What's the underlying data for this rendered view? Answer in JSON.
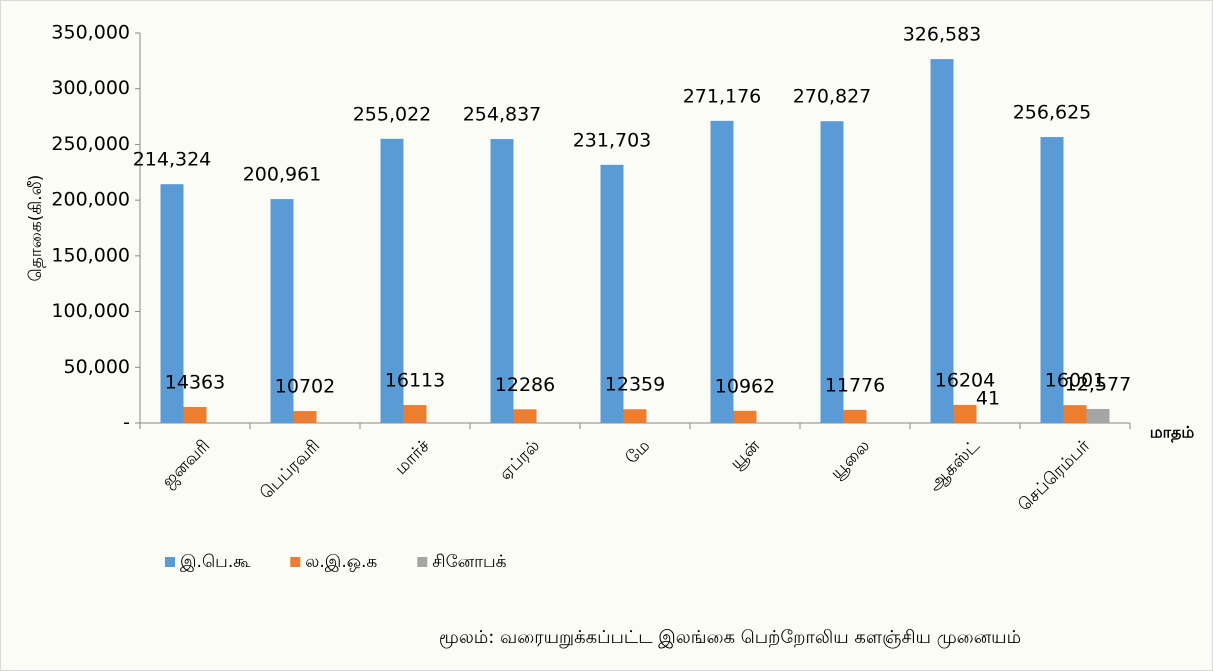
{
  "chart_data": {
    "type": "bar",
    "y_label": "தொகை(கி.லீ)",
    "x_label": "மாதம்",
    "source": "மூலம்: வரையறுக்கப்பட்ட இலங்கை பெற்றோலிய களஞ்சிய முனையம்",
    "categories": [
      "ஜனவரி",
      "பெப்ரவரி",
      "மார்ச்",
      "ஏப்ரல்",
      "மே",
      "யூன்",
      "யூலை",
      "ஆகஸ்ட்",
      "செப்ரெம்பர்"
    ],
    "series": [
      {
        "name": "இ.பெ.கூ",
        "color": "#5b9bd5",
        "values": [
          214324,
          200961,
          255022,
          254837,
          231703,
          271176,
          270827,
          326583,
          256625
        ],
        "value_labels": [
          "214,324",
          "200,961",
          "255,022",
          "254,837",
          "231,703",
          "271,176",
          "270,827",
          "326,583",
          "256,625"
        ]
      },
      {
        "name": "ல.இ.ஒ.க",
        "color": "#ed7d31",
        "values": [
          14363,
          10702,
          16113,
          12286,
          12359,
          10962,
          11776,
          16204,
          16001
        ]
      },
      {
        "name": "சினோபக்",
        "color": "#a5a5a5",
        "values": [
          null,
          null,
          null,
          null,
          null,
          null,
          null,
          41,
          12577
        ],
        "value_labels": [
          null,
          null,
          null,
          null,
          null,
          null,
          null,
          "41",
          "12,577"
        ]
      }
    ],
    "ylim": [
      0,
      350000
    ],
    "yticks": [
      {
        "value": 0,
        "label": "-"
      },
      {
        "value": 50000,
        "label": "50,000"
      },
      {
        "value": 100000,
        "label": "100,000"
      },
      {
        "value": 150000,
        "label": "150,000"
      },
      {
        "value": 200000,
        "label": "200,000"
      },
      {
        "value": 250000,
        "label": "250,000"
      },
      {
        "value": 300000,
        "label": "300,000"
      },
      {
        "value": 350000,
        "label": "350,000"
      }
    ],
    "grid": false,
    "legend": "bottom-left"
  }
}
